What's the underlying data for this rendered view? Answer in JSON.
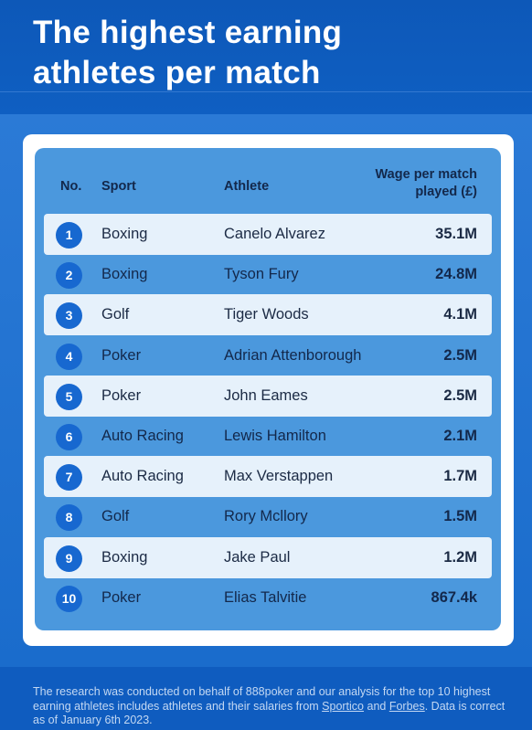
{
  "header": {
    "title_line1": "The highest earning",
    "title_line2": "athletes per match"
  },
  "table": {
    "headers": {
      "no": "No.",
      "sport": "Sport",
      "athlete": "Athlete",
      "wage_line1": "Wage per match",
      "wage_line2": "played (£)"
    },
    "rows": [
      {
        "no": "1",
        "sport": "Boxing",
        "athlete": "Canelo Alvarez",
        "wage": "35.1M"
      },
      {
        "no": "2",
        "sport": "Boxing",
        "athlete": "Tyson Fury",
        "wage": "24.8M"
      },
      {
        "no": "3",
        "sport": "Golf",
        "athlete": "Tiger Woods",
        "wage": "4.1M"
      },
      {
        "no": "4",
        "sport": "Poker",
        "athlete": "Adrian Attenborough",
        "wage": "2.5M"
      },
      {
        "no": "5",
        "sport": "Poker",
        "athlete": "John Eames",
        "wage": "2.5M"
      },
      {
        "no": "6",
        "sport": "Auto Racing",
        "athlete": "Lewis Hamilton",
        "wage": "2.1M"
      },
      {
        "no": "7",
        "sport": "Auto Racing",
        "athlete": "Max Verstappen",
        "wage": "1.7M"
      },
      {
        "no": "8",
        "sport": "Golf",
        "athlete": "Rory Mcllory",
        "wage": "1.5M"
      },
      {
        "no": "9",
        "sport": "Boxing",
        "athlete": "Jake Paul",
        "wage": "1.2M"
      },
      {
        "no": "10",
        "sport": "Poker",
        "athlete": "Elias Talvitie",
        "wage": "867.4k"
      }
    ]
  },
  "footer": {
    "text_part1": "The research was conducted on behalf of 888poker and our analysis for the top 10 highest earning athletes includes athletes and their salaries from ",
    "link1": "Sportico",
    "text_part2": " and ",
    "link2": "Forbes",
    "text_part3": ". Data is correct as of January 6th 2023."
  },
  "colors": {
    "header_bg": "#0d58b8",
    "panel_bg": "#4b98dd",
    "light_row": "#e6f1fb",
    "badge": "#1768d0",
    "text_dark": "#13284b"
  }
}
